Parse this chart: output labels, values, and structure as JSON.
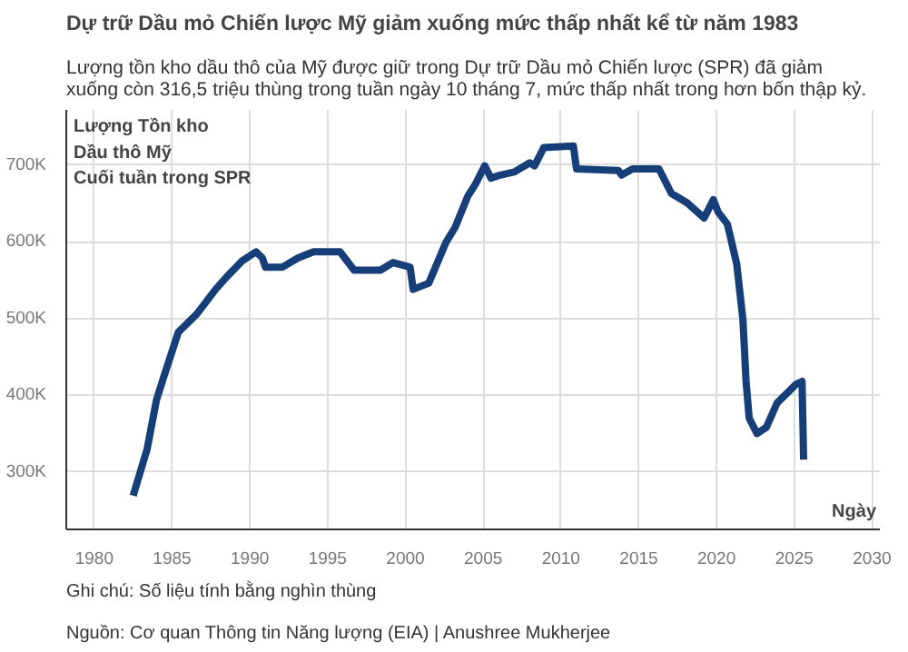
{
  "chart_data": {
    "type": "line",
    "title": "Dự trữ Dầu mỏ Chiến lược Mỹ giảm xuống mức thấp nhất kể từ năm 1983",
    "subtitle": "Lượng tồn kho dầu thô của Mỹ được giữ trong Dự trữ Dầu mỏ Chiến lược (SPR) đã giảm\nxuống còn 316,5 triệu thùng trong tuần ngày 10 tháng 7, mức thấp nhất trong hơn bốn thập kỷ.",
    "ylabel": "Lượng Tồn kho\nDầu thô Mỹ\nCuối tuần trong SPR",
    "xlabel": "Ngày",
    "annotations": [
      "Ghi chú: Số liệu tính bằng nghìn thùng",
      "Nguồn: Cơ quan Thông tin Năng lượng (EIA) | Anushree Mukherjee"
    ],
    "x": [
      1982.5,
      1983.4,
      1984.0,
      1984.5,
      1985.4,
      1986.6,
      1987.8,
      1988.5,
      1989.5,
      1990.4,
      1990.8,
      1991.0,
      1992.1,
      1993.1,
      1994.1,
      1995.8,
      1996.7,
      1998.4,
      1999.2,
      2000.3,
      2000.5,
      2001.5,
      2002.6,
      2003.2,
      2004.0,
      2004.5,
      2005.1,
      2005.5,
      2006.1,
      2007.0,
      2008.0,
      2008.3,
      2008.9,
      2010.8,
      2011.0,
      2013.7,
      2013.9,
      2014.6,
      2016.3,
      2017.1,
      2018.1,
      2019.2,
      2019.8,
      2020.1,
      2020.7,
      2021.3,
      2021.7,
      2021.9,
      2022.1,
      2022.6,
      2023.2,
      2023.9,
      2025.1,
      2025.5,
      2025.6
    ],
    "series": [
      {
        "color": "#163f7a",
        "values": [
          269,
          330,
          394,
          426,
          482,
          506,
          538,
          554,
          575,
          587,
          579,
          567,
          567,
          579,
          587,
          587,
          563,
          563,
          573,
          567,
          538,
          546,
          599,
          619,
          659,
          675,
          699,
          683,
          687,
          691,
          703,
          699,
          723,
          725,
          695,
          693,
          687,
          695,
          695,
          663,
          651,
          631,
          655,
          639,
          623,
          571,
          498,
          418,
          370,
          350,
          358,
          390,
          414,
          418,
          316
        ]
      }
    ],
    "xlim": [
      1978.2,
      2030.5
    ],
    "xticks": [
      1980,
      1985,
      1990,
      1995,
      2000,
      2005,
      2010,
      2015,
      2020,
      2025,
      2030
    ],
    "ylim": [
      225,
      772
    ],
    "yticks": [
      {
        "value": 300,
        "label": "300K"
      },
      {
        "value": 400,
        "label": "400K"
      },
      {
        "value": 500,
        "label": "500K"
      },
      {
        "value": 600,
        "label": "600K"
      },
      {
        "value": 700,
        "label": "700K"
      }
    ],
    "grid": true,
    "marker": "none",
    "line_style": "solid"
  }
}
